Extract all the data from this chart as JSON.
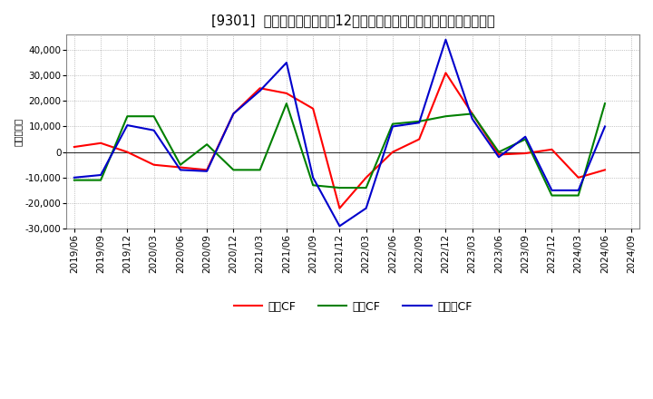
{
  "title": "[9301]  キャッシュフローの12か月移動合計の対前年同期増減額の推移",
  "ylabel": "（百万円）",
  "background_color": "#ffffff",
  "plot_bg_color": "#ffffff",
  "grid_color": "#999999",
  "x_labels": [
    "2019/06",
    "2019/09",
    "2019/12",
    "2020/03",
    "2020/06",
    "2020/09",
    "2020/12",
    "2021/03",
    "2021/06",
    "2021/09",
    "2021/12",
    "2022/03",
    "2022/06",
    "2022/09",
    "2022/12",
    "2023/03",
    "2023/06",
    "2023/09",
    "2023/12",
    "2024/03",
    "2024/06",
    "2024/09"
  ],
  "営業CF": [
    2000,
    3500,
    0,
    -5000,
    -6000,
    -7000,
    15000,
    25000,
    23000,
    17000,
    -22000,
    -10000,
    0,
    5000,
    31000,
    15000,
    -1000,
    -500,
    1000,
    -10000,
    -7000,
    null
  ],
  "投資CF": [
    -11000,
    -11000,
    14000,
    14000,
    -5000,
    3000,
    -7000,
    -7000,
    19000,
    -13000,
    -14000,
    -14000,
    11000,
    12000,
    14000,
    15000,
    0,
    5000,
    -17000,
    -17000,
    19000,
    null
  ],
  "フリーCF": [
    -10000,
    -9000,
    10500,
    8500,
    -7000,
    -7500,
    15000,
    24000,
    35000,
    -10000,
    -29000,
    -22000,
    10000,
    11500,
    44000,
    13000,
    -2000,
    6000,
    -15000,
    -15000,
    10000,
    null
  ],
  "line_colors": {
    "営業CF": "#ff0000",
    "投資CF": "#008000",
    "フリーCF": "#0000cc"
  },
  "legend_labels": [
    "営業CF",
    "投資CF",
    "フリーCF"
  ],
  "ylim": [
    -30000,
    46000
  ],
  "yticks": [
    -30000,
    -20000,
    -10000,
    0,
    10000,
    20000,
    30000,
    40000
  ],
  "title_fontsize": 10.5,
  "axis_fontsize": 7.5,
  "legend_fontsize": 9
}
